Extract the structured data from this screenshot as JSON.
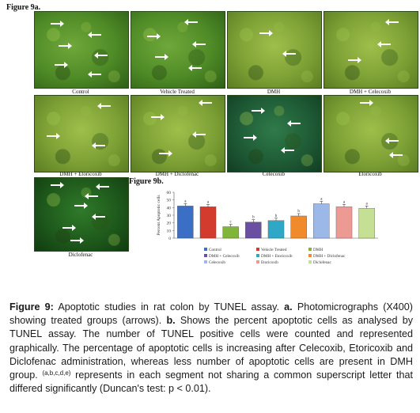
{
  "figure_9a_label": "Figure 9a.",
  "figure_9b_label": "Figure 9b.",
  "panels": [
    {
      "caption": "Control"
    },
    {
      "caption": "Vehicle Treated"
    },
    {
      "caption": "DMH"
    },
    {
      "caption": "DMH + Celecoxib"
    },
    {
      "caption": "DMH + Etoricoxib"
    },
    {
      "caption": "DMH + Diclofenac"
    },
    {
      "caption": "Celecoxib"
    },
    {
      "caption": "Etoricoxib"
    },
    {
      "caption": "Diclofenac"
    }
  ],
  "chart_data": {
    "type": "bar",
    "ylabel": "Percent Apoptotic cells",
    "ylim": [
      0,
      60
    ],
    "yticks": [
      "0",
      "10",
      "20",
      "30",
      "40",
      "50",
      "60"
    ],
    "grid": false,
    "legend_position": "bottom",
    "series": [
      {
        "name": "Control",
        "value": 42,
        "letter": "a",
        "color": "#3b6fc6"
      },
      {
        "name": "Vehicle Treated",
        "value": 41,
        "letter": "a",
        "color": "#d23b2e"
      },
      {
        "name": "DMH",
        "value": 15,
        "letter": "c",
        "color": "#7fb539"
      },
      {
        "name": "DMH + Celecoxib",
        "value": 21,
        "letter": "b",
        "color": "#6a4fa3"
      },
      {
        "name": "DMH + Etoricoxib",
        "value": 23,
        "letter": "b",
        "color": "#2fa7c7"
      },
      {
        "name": "DMH + Diclofenac",
        "value": 29,
        "letter": "b",
        "color": "#f08a2a"
      },
      {
        "name": "Celecoxib",
        "value": 45,
        "letter": "a",
        "color": "#9bb8e8"
      },
      {
        "name": "Etoricoxib",
        "value": 41,
        "letter": "a",
        "color": "#ee9a94"
      },
      {
        "name": "Diclofenac",
        "value": 39,
        "letter": "a",
        "color": "#c5df95"
      }
    ]
  },
  "caption": {
    "figure_ref": "Figure 9:",
    "title": " Apoptotic studies in rat colon by TUNEL assay. ",
    "part_a_label": "a.",
    "part_a_text": " Photomicrographs (X400) showing treated groups (arrows). ",
    "part_b_label": "b.",
    "part_b_text": " Shows the percent apoptotic cells as analysed by TUNEL assay. The number of TUNEL positive cells were counted and represented graphically. The percentage of apoptotic cells is increasing after Celecoxib, Etoricoxib and Diclofenac administration, whereas less number of apoptotic cells are present in DMH group. ",
    "superscript": "(a,b,c,d,e)",
    "tail_text": " represents in each segment not sharing a common superscript letter that differed significantly (Duncan's test: p < 0.01)."
  }
}
